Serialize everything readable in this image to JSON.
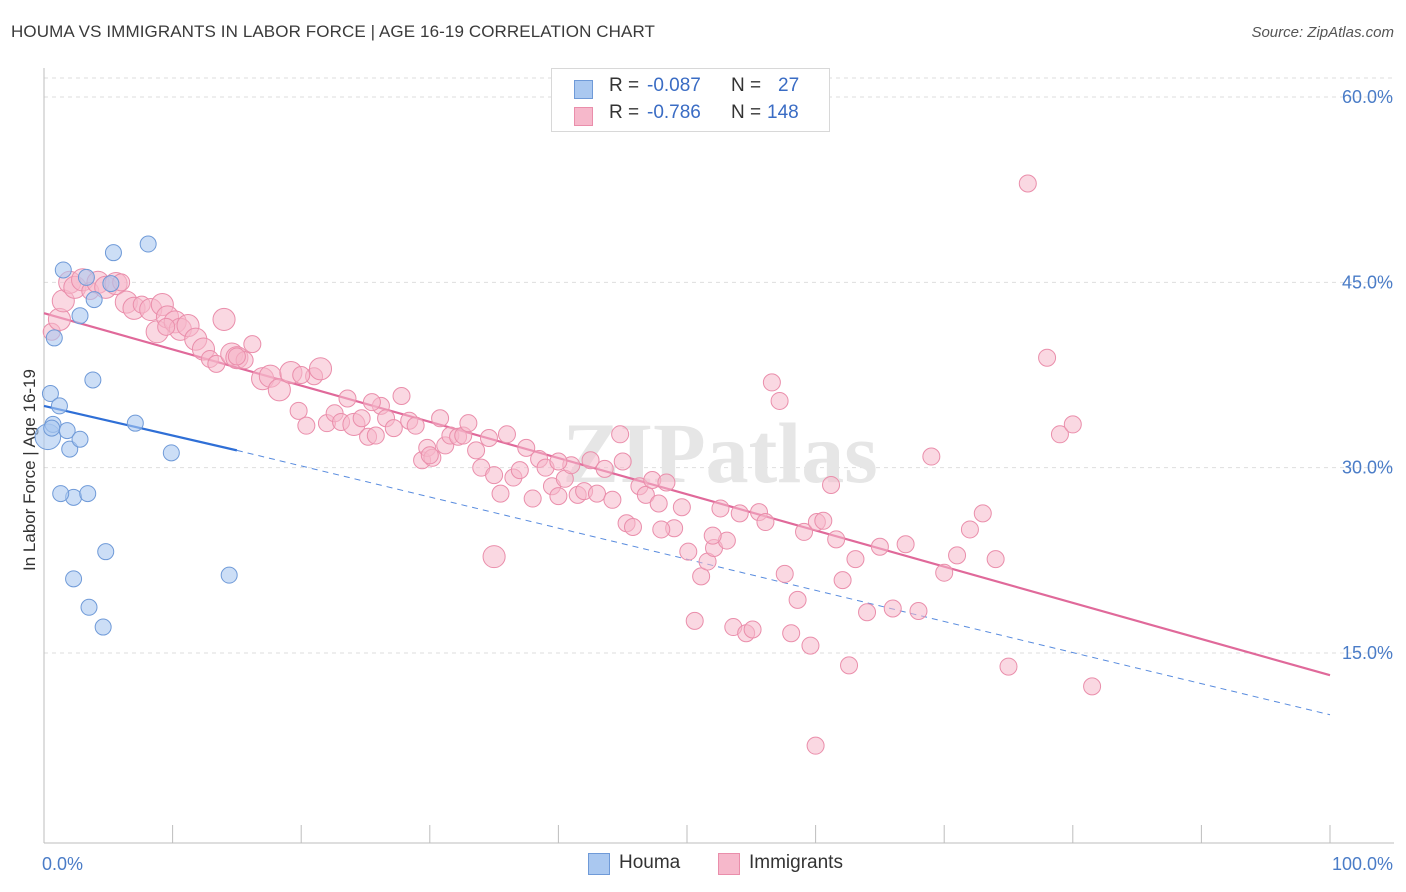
{
  "title": "HOUMA VS IMMIGRANTS IN LABOR FORCE | AGE 16-19 CORRELATION CHART",
  "source": "Source: ZipAtlas.com",
  "watermark": "ZIPatlas",
  "colors": {
    "houma_fill": "#aac8f0",
    "houma_stroke": "#6f9ad8",
    "houma_line": "#2f6fd6",
    "imm_fill": "#f6b8cb",
    "imm_stroke": "#ea8eab",
    "imm_line": "#e0699a",
    "grid": "#dedede",
    "axis_text": "#4a7cc7"
  },
  "stats": {
    "houma": {
      "r_label": "R =",
      "r_value": "-0.087",
      "n_label": "N =",
      "n_value": "27"
    },
    "immigrants": {
      "r_label": "R =",
      "r_value": "-0.786",
      "n_label": "N =",
      "n_value": "148"
    }
  },
  "legend": {
    "houma": "Houma",
    "immigrants": "Immigrants"
  },
  "chart_data": {
    "type": "scatter",
    "title": "HOUMA VS IMMIGRANTS IN LABOR FORCE | AGE 16-19 CORRELATION CHART",
    "xlabel": "",
    "ylabel": "In Labor Force | Age 16-19",
    "xlim": [
      0,
      105
    ],
    "ylim": [
      0,
      63
    ],
    "x_ticks": [
      0,
      10,
      20,
      30,
      40,
      50,
      60,
      70,
      80,
      90,
      100
    ],
    "x_tick_labels": [
      {
        "value": 0,
        "label": "0.0%"
      },
      {
        "value": 100,
        "label": "100.0%"
      }
    ],
    "y_ticks": [
      15,
      30,
      45,
      60
    ],
    "y_tick_labels": [
      "15.0%",
      "30.0%",
      "45.0%",
      "60.0%"
    ],
    "grid": true,
    "series": [
      {
        "name": "Houma",
        "r": -0.087,
        "n": 27,
        "trend": {
          "x0": 0,
          "y0": 35.0,
          "x1": 15,
          "y1": 31.4,
          "dashed_to_x": 100,
          "dashed_to_y": 10.0
        },
        "points": [
          [
            0.3,
            32.5,
            1.6
          ],
          [
            0.5,
            36.0,
            1
          ],
          [
            0.7,
            33.5,
            1
          ],
          [
            0.8,
            40.5,
            1
          ],
          [
            1.2,
            35.0,
            1
          ],
          [
            1.5,
            46.0,
            1
          ],
          [
            1.8,
            33.0,
            1
          ],
          [
            2.0,
            31.5,
            1
          ],
          [
            2.3,
            27.6,
            1
          ],
          [
            2.3,
            21.0,
            1
          ],
          [
            1.3,
            27.9,
            1
          ],
          [
            2.8,
            32.3,
            1
          ],
          [
            2.8,
            42.3,
            1
          ],
          [
            3.3,
            45.4,
            1
          ],
          [
            3.4,
            27.9,
            1
          ],
          [
            3.5,
            18.7,
            1
          ],
          [
            3.8,
            37.1,
            1
          ],
          [
            3.9,
            43.6,
            1
          ],
          [
            4.6,
            17.1,
            1
          ],
          [
            4.8,
            23.2,
            1
          ],
          [
            5.2,
            44.9,
            1
          ],
          [
            5.4,
            47.4,
            1
          ],
          [
            7.1,
            33.6,
            1
          ],
          [
            8.1,
            48.1,
            1
          ],
          [
            9.9,
            31.2,
            1
          ],
          [
            14.4,
            21.3,
            1
          ],
          [
            0.6,
            33.2,
            1
          ]
        ]
      },
      {
        "name": "Immigrants",
        "r": -0.786,
        "n": 148,
        "trend": {
          "x0": 0,
          "y0": 42.5,
          "x1": 100,
          "y1": 13.2
        },
        "points": [
          [
            0.6,
            41.0,
            1
          ],
          [
            1.2,
            42.0,
            1.3
          ],
          [
            1.5,
            43.5,
            1.3
          ],
          [
            2.0,
            45.0,
            1.3
          ],
          [
            2.4,
            44.6,
            1.3
          ],
          [
            3.0,
            45.2,
            1.3
          ],
          [
            3.6,
            44.3,
            1
          ],
          [
            4.2,
            45.0,
            1.3
          ],
          [
            4.8,
            44.6,
            1.3
          ],
          [
            5.6,
            44.9,
            1.3
          ],
          [
            6.4,
            43.4,
            1.3
          ],
          [
            7.0,
            42.9,
            1.3
          ],
          [
            7.6,
            43.2,
            1
          ],
          [
            8.3,
            42.8,
            1.3
          ],
          [
            8.8,
            41.0,
            1.3
          ],
          [
            9.2,
            43.2,
            1.3
          ],
          [
            9.6,
            42.2,
            1.3
          ],
          [
            10.2,
            41.8,
            1.3
          ],
          [
            10.6,
            41.2,
            1.3
          ],
          [
            11.2,
            41.5,
            1.3
          ],
          [
            11.8,
            40.4,
            1.3
          ],
          [
            12.4,
            39.6,
            1.3
          ],
          [
            12.9,
            38.8,
            1
          ],
          [
            13.4,
            38.4,
            1
          ],
          [
            14.0,
            42.0,
            1.3
          ],
          [
            14.6,
            39.2,
            1.3
          ],
          [
            15.0,
            38.9,
            1.3
          ],
          [
            15.6,
            38.7,
            1
          ],
          [
            16.2,
            40.0,
            1
          ],
          [
            17.0,
            37.2,
            1.3
          ],
          [
            17.6,
            37.4,
            1.3
          ],
          [
            18.3,
            36.3,
            1.3
          ],
          [
            19.2,
            37.7,
            1.3
          ],
          [
            19.8,
            34.6,
            1
          ],
          [
            20.4,
            33.4,
            1
          ],
          [
            21.0,
            37.4,
            1
          ],
          [
            21.5,
            38.0,
            1.3
          ],
          [
            22.0,
            33.6,
            1
          ],
          [
            22.6,
            34.4,
            1
          ],
          [
            23.1,
            33.7,
            1
          ],
          [
            23.6,
            35.6,
            1
          ],
          [
            24.1,
            33.5,
            1.3
          ],
          [
            24.7,
            34.0,
            1
          ],
          [
            25.2,
            32.5,
            1
          ],
          [
            25.8,
            32.6,
            1
          ],
          [
            26.2,
            35.0,
            1
          ],
          [
            26.6,
            34.0,
            1
          ],
          [
            27.2,
            33.2,
            1
          ],
          [
            27.8,
            35.8,
            1
          ],
          [
            28.4,
            33.8,
            1
          ],
          [
            28.9,
            33.4,
            1
          ],
          [
            29.4,
            30.6,
            1
          ],
          [
            29.8,
            31.6,
            1
          ],
          [
            30.2,
            30.8,
            1
          ],
          [
            30.8,
            34.0,
            1
          ],
          [
            31.2,
            31.8,
            1
          ],
          [
            31.6,
            32.6,
            1
          ],
          [
            32.2,
            32.5,
            1
          ],
          [
            32.6,
            32.6,
            1
          ],
          [
            33.0,
            33.6,
            1
          ],
          [
            33.6,
            31.4,
            1
          ],
          [
            34.0,
            30.0,
            1
          ],
          [
            34.6,
            32.4,
            1
          ],
          [
            35.0,
            29.4,
            1
          ],
          [
            35.5,
            27.9,
            1
          ],
          [
            36.0,
            32.7,
            1
          ],
          [
            36.5,
            29.2,
            1
          ],
          [
            37.0,
            29.8,
            1
          ],
          [
            37.5,
            31.6,
            1
          ],
          [
            38.0,
            27.5,
            1
          ],
          [
            38.5,
            30.7,
            1
          ],
          [
            39.0,
            30.0,
            1
          ],
          [
            39.5,
            28.5,
            1
          ],
          [
            40.0,
            27.7,
            1
          ],
          [
            40.5,
            29.1,
            1
          ],
          [
            41.0,
            30.2,
            1
          ],
          [
            41.5,
            27.8,
            1
          ],
          [
            42.0,
            28.1,
            1
          ],
          [
            42.5,
            30.6,
            1
          ],
          [
            43.0,
            27.9,
            1
          ],
          [
            43.6,
            29.9,
            1
          ],
          [
            44.2,
            27.4,
            1
          ],
          [
            44.8,
            32.7,
            1
          ],
          [
            45.3,
            25.5,
            1
          ],
          [
            45.8,
            25.2,
            1
          ],
          [
            46.3,
            28.5,
            1
          ],
          [
            46.8,
            27.8,
            1
          ],
          [
            47.3,
            29.0,
            1
          ],
          [
            47.8,
            27.1,
            1
          ],
          [
            48.4,
            28.8,
            1
          ],
          [
            49.0,
            25.1,
            1
          ],
          [
            49.6,
            26.8,
            1
          ],
          [
            50.1,
            23.2,
            1
          ],
          [
            50.6,
            17.6,
            1
          ],
          [
            51.1,
            21.2,
            1
          ],
          [
            51.6,
            22.4,
            1
          ],
          [
            52.1,
            23.5,
            1
          ],
          [
            52.6,
            26.7,
            1
          ],
          [
            53.1,
            24.1,
            1
          ],
          [
            53.6,
            17.1,
            1
          ],
          [
            54.1,
            26.3,
            1
          ],
          [
            54.6,
            16.6,
            1
          ],
          [
            55.1,
            16.9,
            1
          ],
          [
            55.6,
            26.4,
            1
          ],
          [
            56.1,
            25.6,
            1
          ],
          [
            56.6,
            36.9,
            1
          ],
          [
            57.2,
            35.4,
            1
          ],
          [
            57.6,
            21.4,
            1
          ],
          [
            58.1,
            16.6,
            1
          ],
          [
            58.6,
            19.3,
            1
          ],
          [
            59.1,
            24.8,
            1
          ],
          [
            59.6,
            15.6,
            1
          ],
          [
            60.1,
            25.6,
            1
          ],
          [
            60.6,
            25.7,
            1
          ],
          [
            61.2,
            28.6,
            1
          ],
          [
            61.6,
            24.2,
            1
          ],
          [
            62.1,
            20.9,
            1
          ],
          [
            62.6,
            14.0,
            1
          ],
          [
            63.1,
            22.6,
            1
          ],
          [
            64.0,
            18.3,
            1
          ],
          [
            65.0,
            23.6,
            1
          ],
          [
            66.0,
            18.6,
            1
          ],
          [
            67.0,
            23.8,
            1
          ],
          [
            68.0,
            18.4,
            1
          ],
          [
            69.0,
            30.9,
            1
          ],
          [
            70.0,
            21.5,
            1
          ],
          [
            71.0,
            22.9,
            1
          ],
          [
            72.0,
            25.0,
            1
          ],
          [
            73.0,
            26.3,
            1
          ],
          [
            74.0,
            22.6,
            1
          ],
          [
            75.0,
            13.9,
            1
          ],
          [
            76.5,
            53.0,
            1
          ],
          [
            78.0,
            38.9,
            1
          ],
          [
            79.0,
            32.7,
            1
          ],
          [
            80.0,
            33.5,
            1
          ],
          [
            81.5,
            12.3,
            1
          ],
          [
            60.0,
            7.5,
            1
          ],
          [
            35.0,
            22.8,
            1.3
          ],
          [
            25.5,
            35.3,
            1
          ],
          [
            15.0,
            39.0,
            1
          ],
          [
            9.5,
            41.4,
            1
          ],
          [
            6.0,
            45.0,
            1
          ],
          [
            20.0,
            37.5,
            1
          ],
          [
            45.0,
            30.5,
            1
          ],
          [
            52.0,
            24.5,
            1
          ],
          [
            48.0,
            25.0,
            1
          ],
          [
            30.0,
            31.0,
            1
          ],
          [
            40.0,
            30.5,
            1
          ]
        ]
      }
    ]
  }
}
